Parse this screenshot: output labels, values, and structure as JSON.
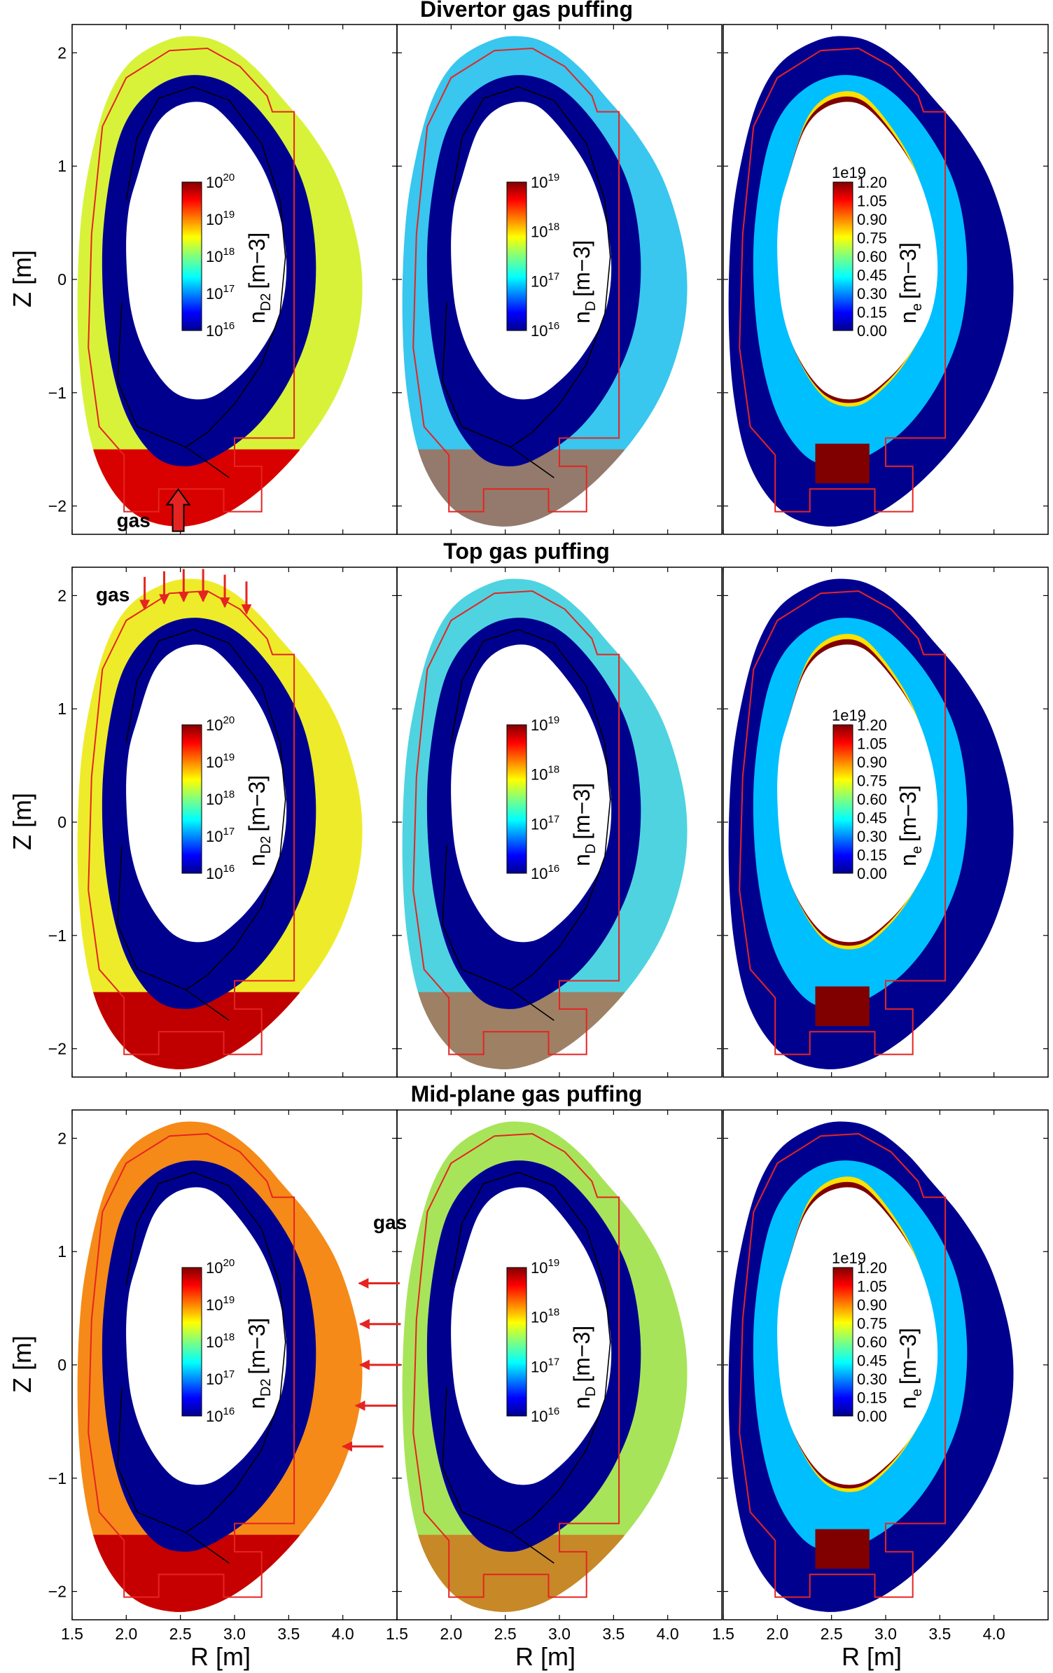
{
  "figure": {
    "shared_xlabel": "R [m]",
    "shared_ylabel": "Z [m]",
    "xlim": [
      1.5,
      4.5
    ],
    "ylim": [
      -2.25,
      2.25
    ],
    "x_ticks": [
      "1.5",
      "2.0",
      "2.5",
      "3.0",
      "3.5",
      "4.0"
    ],
    "y_ticks": [
      "2",
      "1",
      "0",
      "−1",
      "−2"
    ],
    "colormap": "jet",
    "wall_color": "#e52421",
    "separatrix_color": "#000000",
    "gas_arrow_color": "#e52421",
    "gas_label": "gas"
  },
  "chart_data": [
    {
      "type": "heatmap",
      "title": "Divertor gas puffing",
      "panels": [
        {
          "quantity": "nD2",
          "colorbar": {
            "scale": "log",
            "ticks": [
              "10",
              "10",
              "10",
              "10",
              "10"
            ],
            "exponents": [
              "20",
              "19",
              "18",
              "17",
              "16"
            ],
            "label": "n",
            "sub": "D2",
            "unit": "[m−3]"
          }
        },
        {
          "quantity": "nD",
          "colorbar": {
            "scale": "log",
            "ticks": [
              "10",
              "10",
              "10",
              "10"
            ],
            "exponents": [
              "19",
              "18",
              "17",
              "16"
            ],
            "label": "n",
            "sub": "D",
            "unit": "[m−3]"
          }
        },
        {
          "quantity": "ne",
          "colorbar": {
            "scale": "linear",
            "offset": "1e19",
            "ticks": [
              "1.20",
              "1.05",
              "0.90",
              "0.75",
              "0.60",
              "0.45",
              "0.30",
              "0.15",
              "0.00"
            ],
            "label": "n",
            "sub": "e",
            "unit": "[m−3]"
          }
        }
      ],
      "gas_location": "divertor",
      "gas_arrow_points": [
        {
          "r": 2.48,
          "z": -2.05
        }
      ]
    },
    {
      "type": "heatmap",
      "title": "Top gas puffing",
      "panels": [
        {
          "quantity": "nD2",
          "colorbar": {
            "scale": "log",
            "ticks": [
              "10",
              "10",
              "10",
              "10",
              "10"
            ],
            "exponents": [
              "20",
              "19",
              "18",
              "17",
              "16"
            ],
            "label": "n",
            "sub": "D2",
            "unit": "[m−3]"
          }
        },
        {
          "quantity": "nD",
          "colorbar": {
            "scale": "log",
            "ticks": [
              "10",
              "10",
              "10",
              "10"
            ],
            "exponents": [
              "19",
              "18",
              "17",
              "16"
            ],
            "label": "n",
            "sub": "D",
            "unit": "[m−3]"
          }
        },
        {
          "quantity": "ne",
          "colorbar": {
            "scale": "linear",
            "offset": "1e19",
            "ticks": [
              "1.20",
              "1.05",
              "0.90",
              "0.75",
              "0.60",
              "0.45",
              "0.30",
              "0.15",
              "0.00"
            ],
            "label": "n",
            "sub": "e",
            "unit": "[m−3]"
          }
        }
      ],
      "gas_location": "top",
      "gas_arrow_points": [
        {
          "r": 2.17,
          "z": 1.88
        },
        {
          "r": 2.35,
          "z": 1.93
        },
        {
          "r": 2.53,
          "z": 1.95
        },
        {
          "r": 2.71,
          "z": 1.95
        },
        {
          "r": 2.91,
          "z": 1.9
        },
        {
          "r": 3.11,
          "z": 1.84
        }
      ]
    },
    {
      "type": "heatmap",
      "title": "Mid-plane gas puffing",
      "panels": [
        {
          "quantity": "nD2",
          "colorbar": {
            "scale": "log",
            "ticks": [
              "10",
              "10",
              "10",
              "10",
              "10"
            ],
            "exponents": [
              "20",
              "19",
              "18",
              "17",
              "16"
            ],
            "label": "n",
            "sub": "D2",
            "unit": "[m−3]"
          }
        },
        {
          "quantity": "nD",
          "colorbar": {
            "scale": "log",
            "ticks": [
              "10",
              "10",
              "10",
              "10"
            ],
            "exponents": [
              "19",
              "18",
              "17",
              "16"
            ],
            "label": "n",
            "sub": "D",
            "unit": "[m−3]"
          }
        },
        {
          "quantity": "ne",
          "colorbar": {
            "scale": "linear",
            "offset": "1e19",
            "ticks": [
              "1.20",
              "1.05",
              "0.90",
              "0.75",
              "0.60",
              "0.45",
              "0.30",
              "0.15",
              "0.00"
            ],
            "label": "n",
            "sub": "e",
            "unit": "[m−3]"
          }
        }
      ],
      "gas_location": "mid-plane",
      "gas_arrow_points": [
        {
          "r": 4.15,
          "z": 0.72
        },
        {
          "r": 4.16,
          "z": 0.36
        },
        {
          "r": 4.16,
          "z": 0.0
        },
        {
          "r": 4.12,
          "z": -0.36
        },
        {
          "r": 4.0,
          "z": -0.72
        }
      ]
    }
  ]
}
